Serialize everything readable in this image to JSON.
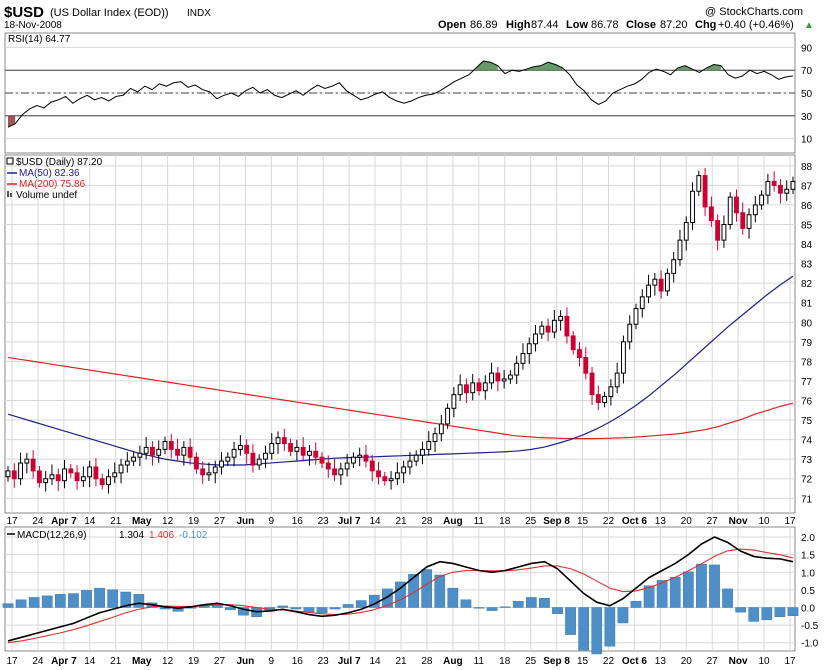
{
  "header": {
    "symbol": "$USD",
    "name": "(US Dollar Index (EOD))",
    "exchange": "INDX",
    "watermark": "@ StockCharts.com",
    "date": "18-Nov-2008",
    "open_label": "Open",
    "open": "86.89",
    "high_label": "High",
    "high": "87.44",
    "low_label": "Low",
    "low": "86.78",
    "close_label": "Close",
    "close": "87.20",
    "chg_label": "Chg",
    "chg": "+0.40 (+0.46%)",
    "chg_arrow": "▲"
  },
  "colors": {
    "up_candle": "#000000",
    "down_candle": "#cc0033",
    "ma50": "#1f1f8f",
    "ma200": "#dd2222",
    "rsi_overbought_fill": "#4e8a4e",
    "rsi_oversold_fill": "#8b3a3a",
    "macd_line": "#000000",
    "macd_signal": "#e03030",
    "macd_hist": "#4f8fc8",
    "grid": "#d8d8d8"
  },
  "chart_data": [
    {
      "type": "line",
      "panel": "RSI",
      "legend": "RSI(14) 64.77",
      "ylim": [
        0,
        100
      ],
      "y_ticks": [
        10,
        30,
        50,
        70,
        90
      ],
      "reference_lines": [
        30,
        50,
        70
      ],
      "values": [
        20,
        23,
        31,
        36,
        39,
        37,
        42,
        44,
        47,
        41,
        45,
        48,
        44,
        46,
        43,
        47,
        48,
        54,
        51,
        56,
        53,
        58,
        56,
        59,
        60,
        55,
        57,
        53,
        51,
        45,
        48,
        50,
        47,
        52,
        55,
        50,
        53,
        48,
        46,
        49,
        52,
        48,
        53,
        57,
        54,
        56,
        59,
        52,
        48,
        44,
        46,
        49,
        51,
        46,
        43,
        41,
        43,
        46,
        48,
        49,
        52,
        56,
        60,
        63,
        66,
        72,
        78,
        77,
        74,
        67,
        70,
        69,
        71,
        73,
        74,
        77,
        75,
        72,
        66,
        57,
        52,
        44,
        40,
        43,
        50,
        53,
        56,
        58,
        62,
        68,
        71,
        69,
        66,
        72,
        74,
        71,
        68,
        72,
        75,
        74,
        66,
        63,
        65,
        70,
        67,
        69,
        66,
        62,
        64,
        65
      ]
    },
    {
      "type": "candlestick",
      "panel": "Price",
      "legend": [
        "$USD (Daily) 87.20",
        "MA(50) 82.36",
        "MA(200) 75.86",
        "Volume undef"
      ],
      "ylim": [
        70.4,
        88.4
      ],
      "y_ticks": [
        71,
        72,
        73,
        74,
        75,
        76,
        77,
        78,
        79,
        80,
        81,
        82,
        83,
        84,
        85,
        86,
        87,
        88
      ],
      "x_tick_labels": [
        "17",
        "24",
        "Apr 7",
        "14",
        "21",
        "May",
        "12",
        "19",
        "27",
        "Jun",
        "9",
        "16",
        "23",
        "Jul 7",
        "14",
        "21",
        "28",
        "Aug",
        "11",
        "18",
        "25",
        "Sep 8",
        "15",
        "22",
        "Oct 6",
        "13",
        "20",
        "27",
        "Nov",
        "10",
        "17"
      ],
      "close": [
        72.4,
        72.0,
        72.8,
        73.0,
        72.4,
        71.8,
        72.0,
        72.2,
        71.9,
        72.5,
        72.3,
        71.9,
        72.1,
        72.6,
        72.0,
        71.7,
        72.1,
        72.3,
        72.7,
        72.9,
        73.1,
        73.3,
        73.6,
        73.2,
        73.5,
        73.9,
        73.5,
        73.2,
        73.6,
        73.1,
        72.5,
        72.2,
        72.3,
        72.6,
        72.9,
        73.1,
        73.5,
        73.7,
        73.3,
        72.7,
        73.0,
        73.3,
        73.8,
        74.1,
        73.8,
        73.4,
        73.6,
        73.2,
        73.4,
        73.1,
        72.8,
        72.5,
        72.2,
        72.5,
        72.8,
        73.1,
        73.2,
        72.9,
        72.4,
        72.1,
        71.9,
        72.0,
        72.3,
        72.6,
        72.9,
        73.2,
        73.5,
        73.9,
        74.3,
        74.8,
        75.6,
        76.3,
        76.8,
        76.4,
        76.9,
        76.5,
        76.9,
        77.4,
        77.0,
        77.1,
        77.3,
        77.9,
        78.4,
        78.9,
        79.4,
        79.8,
        79.5,
        80.1,
        80.3,
        79.3,
        78.6,
        78.2,
        77.4,
        76.3,
        75.9,
        76.2,
        76.7,
        77.4,
        79.0,
        79.9,
        80.7,
        81.3,
        81.9,
        82.2,
        81.6,
        82.5,
        83.2,
        84.2,
        85.1,
        86.7,
        87.5,
        85.9,
        85.2,
        84.2,
        85.0,
        86.4,
        85.6,
        84.8,
        85.5,
        86.0,
        86.5,
        87.2,
        87.0,
        86.6,
        86.8,
        87.2
      ]
    },
    {
      "type": "line",
      "panel": "Price",
      "name": "MA(50) 82.36",
      "values": [
        75.3,
        75.1,
        74.9,
        74.7,
        74.5,
        74.3,
        74.1,
        73.9,
        73.7,
        73.5,
        73.3,
        73.15,
        73.0,
        72.9,
        72.8,
        72.75,
        72.7,
        72.7,
        72.7,
        72.75,
        72.8,
        72.85,
        72.9,
        72.95,
        73.0,
        73.05,
        73.08,
        73.1,
        73.12,
        73.15,
        73.17,
        73.2,
        73.22,
        73.25,
        73.27,
        73.3,
        73.32,
        73.35,
        73.38,
        73.42,
        73.5,
        73.62,
        73.8,
        74.0,
        74.25,
        74.55,
        74.9,
        75.3,
        75.75,
        76.25,
        76.8,
        77.35,
        77.95,
        78.55,
        79.15,
        79.75,
        80.3,
        80.85,
        81.4,
        81.9,
        82.36
      ]
    },
    {
      "type": "line",
      "panel": "Price",
      "name": "MA(200) 75.86",
      "values": [
        78.2,
        78.1,
        78.0,
        77.9,
        77.8,
        77.7,
        77.6,
        77.5,
        77.4,
        77.3,
        77.2,
        77.1,
        77.0,
        76.9,
        76.8,
        76.7,
        76.6,
        76.5,
        76.4,
        76.3,
        76.2,
        76.1,
        76.0,
        75.9,
        75.8,
        75.7,
        75.6,
        75.5,
        75.4,
        75.3,
        75.2,
        75.1,
        75.0,
        74.9,
        74.8,
        74.7,
        74.6,
        74.5,
        74.4,
        74.3,
        74.2,
        74.15,
        74.1,
        74.08,
        74.06,
        74.05,
        74.05,
        74.06,
        74.08,
        74.1,
        74.15,
        74.2,
        74.25,
        74.3,
        74.4,
        74.5,
        74.65,
        74.85,
        75.05,
        75.3,
        75.5,
        75.7,
        75.86
      ]
    },
    {
      "type": "line",
      "panel": "MACD",
      "legend_name": "MACD(12,26,9)",
      "legend_macd": "1.304",
      "legend_signal": "1.406",
      "legend_hist": "-0.102",
      "ylim": [
        -1.15,
        2.2
      ],
      "y_ticks": [
        -1.0,
        -0.5,
        0.0,
        0.5,
        1.0,
        1.5,
        2.0
      ],
      "macd": [
        -0.95,
        -0.85,
        -0.75,
        -0.65,
        -0.55,
        -0.45,
        -0.3,
        -0.15,
        -0.05,
        0.05,
        0.12,
        0.08,
        0.02,
        -0.02,
        0.02,
        0.08,
        0.12,
        0.05,
        -0.05,
        -0.12,
        -0.1,
        -0.05,
        -0.12,
        -0.2,
        -0.25,
        -0.22,
        -0.15,
        -0.05,
        0.1,
        0.3,
        0.55,
        0.85,
        1.15,
        1.3,
        1.25,
        1.15,
        1.05,
        1.0,
        1.05,
        1.15,
        1.25,
        1.3,
        1.1,
        0.75,
        0.4,
        0.15,
        0.05,
        0.25,
        0.55,
        0.85,
        1.05,
        1.25,
        1.5,
        1.8,
        2.0,
        1.85,
        1.6,
        1.45,
        1.4,
        1.38,
        1.3
      ],
      "signal": [
        -1.0,
        -0.95,
        -0.88,
        -0.8,
        -0.72,
        -0.63,
        -0.52,
        -0.4,
        -0.28,
        -0.15,
        -0.05,
        0.02,
        0.04,
        0.03,
        0.03,
        0.05,
        0.08,
        0.08,
        0.05,
        0.0,
        -0.05,
        -0.07,
        -0.1,
        -0.14,
        -0.18,
        -0.2,
        -0.19,
        -0.14,
        -0.06,
        0.06,
        0.22,
        0.42,
        0.66,
        0.88,
        1.0,
        1.05,
        1.05,
        1.04,
        1.04,
        1.07,
        1.12,
        1.18,
        1.18,
        1.1,
        0.95,
        0.75,
        0.55,
        0.45,
        0.47,
        0.57,
        0.7,
        0.86,
        1.04,
        1.24,
        1.45,
        1.61,
        1.66,
        1.63,
        1.56,
        1.5,
        1.406
      ],
      "histogram_note": "histogram = macd - signal"
    }
  ]
}
